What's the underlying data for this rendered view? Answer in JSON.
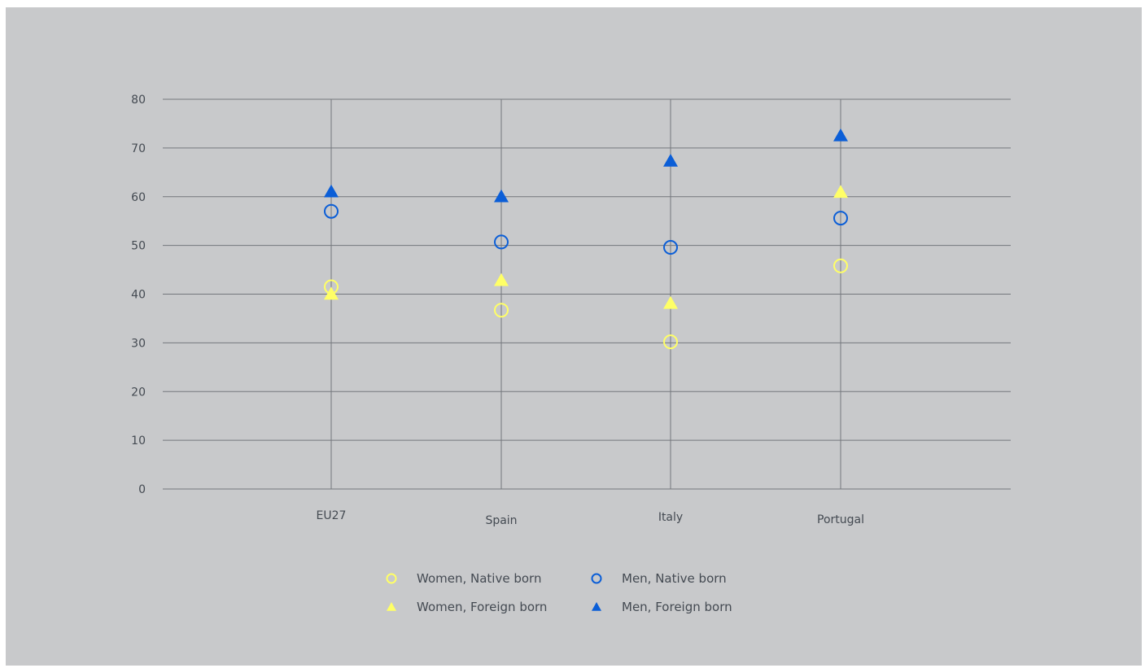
{
  "chart_data": {
    "type": "scatter",
    "categories": [
      "EU27",
      "Spain",
      "Italy",
      "Portugal"
    ],
    "series": [
      {
        "name": "Women, Native born",
        "marker": "circle-open",
        "color": "#ffff66",
        "values": [
          41.5,
          36.7,
          30.2,
          45.8
        ]
      },
      {
        "name": "Men, Native born",
        "marker": "circle-open",
        "color": "#0b5ed7",
        "values": [
          57.0,
          50.7,
          49.6,
          55.6
        ]
      },
      {
        "name": "Women, Foreign born",
        "marker": "triangle",
        "color": "#ffff66",
        "values": [
          40.0,
          42.8,
          38.1,
          60.9
        ]
      },
      {
        "name": "Men, Foreign born",
        "marker": "triangle",
        "color": "#0b5ed7",
        "values": [
          61.0,
          60.0,
          67.3,
          72.5
        ]
      }
    ],
    "ylim": [
      0,
      80
    ],
    "yticks": [
      0,
      10,
      20,
      30,
      40,
      50,
      60,
      70,
      80
    ],
    "grid": true,
    "legend_position": "bottom-center",
    "title": "",
    "xlabel": "",
    "ylabel": ""
  },
  "colors": {
    "background": "#c8c9cb",
    "gridline": "#74777c",
    "text": "#444a52"
  }
}
